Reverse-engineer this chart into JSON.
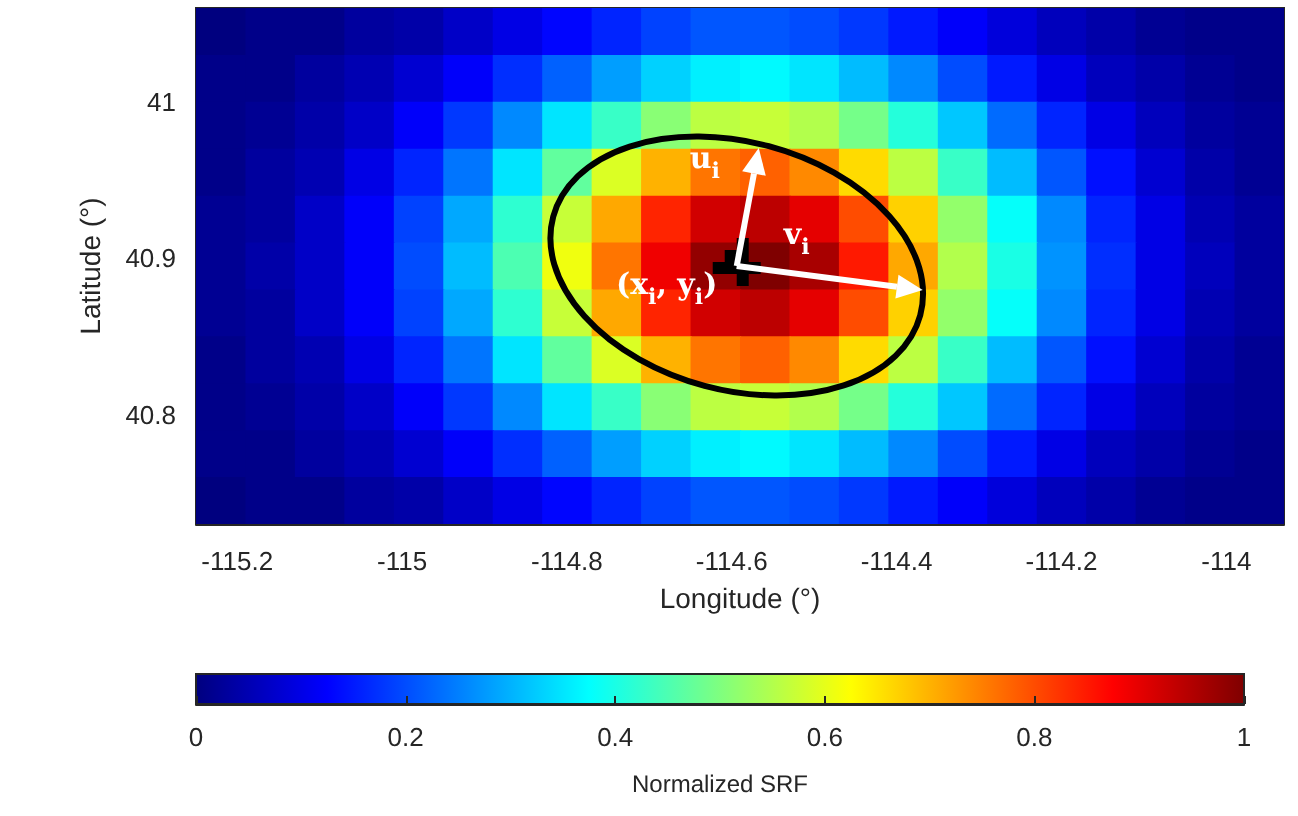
{
  "chart_data": {
    "type": "heatmap",
    "xlabel": "Longitude (°)",
    "ylabel": "Latitude (°)",
    "clabel": "Normalized SRF",
    "x": [
      -115.22,
      -115.16,
      -115.1,
      -115.04,
      -114.98,
      -114.92,
      -114.86,
      -114.8,
      -114.74,
      -114.68,
      -114.62,
      -114.56,
      -114.5,
      -114.44,
      -114.38,
      -114.32,
      -114.26,
      -114.2,
      -114.14,
      -114.08,
      -114.02,
      -113.96
    ],
    "y": [
      41.045,
      41.015,
      40.985,
      40.955,
      40.925,
      40.895,
      40.865,
      40.835,
      40.805,
      40.775,
      40.745
    ],
    "cells": [
      [
        0,
        0.01,
        0.01,
        0.03,
        0.04,
        0.07,
        0.1,
        0.13,
        0.16,
        0.19,
        0.21,
        0.21,
        0.2,
        0.18,
        0.15,
        0.12,
        0.09,
        0.06,
        0.04,
        0.02,
        0.01,
        0.01
      ],
      [
        0.01,
        0.01,
        0.03,
        0.05,
        0.08,
        0.12,
        0.17,
        0.22,
        0.28,
        0.33,
        0.36,
        0.37,
        0.35,
        0.31,
        0.26,
        0.2,
        0.15,
        0.1,
        0.06,
        0.04,
        0.02,
        0.01
      ],
      [
        0.01,
        0.02,
        0.04,
        0.07,
        0.12,
        0.18,
        0.26,
        0.35,
        0.43,
        0.51,
        0.56,
        0.57,
        0.55,
        0.49,
        0.41,
        0.32,
        0.23,
        0.16,
        0.1,
        0.06,
        0.03,
        0.02
      ],
      [
        0.01,
        0.03,
        0.05,
        0.1,
        0.16,
        0.24,
        0.35,
        0.47,
        0.59,
        0.7,
        0.76,
        0.78,
        0.74,
        0.66,
        0.56,
        0.43,
        0.31,
        0.21,
        0.14,
        0.08,
        0.04,
        0.02
      ],
      [
        0.02,
        0.03,
        0.07,
        0.12,
        0.19,
        0.29,
        0.42,
        0.57,
        0.71,
        0.84,
        0.92,
        0.94,
        0.9,
        0.8,
        0.67,
        0.52,
        0.38,
        0.26,
        0.16,
        0.1,
        0.05,
        0.03
      ],
      [
        0.02,
        0.04,
        0.07,
        0.12,
        0.2,
        0.31,
        0.45,
        0.61,
        0.76,
        0.89,
        0.98,
        1,
        0.96,
        0.85,
        0.71,
        0.55,
        0.4,
        0.27,
        0.17,
        0.1,
        0.06,
        0.03
      ],
      [
        0.02,
        0.03,
        0.07,
        0.12,
        0.19,
        0.29,
        0.42,
        0.57,
        0.71,
        0.84,
        0.92,
        0.94,
        0.9,
        0.8,
        0.67,
        0.52,
        0.38,
        0.26,
        0.16,
        0.1,
        0.05,
        0.03
      ],
      [
        0.01,
        0.03,
        0.05,
        0.1,
        0.16,
        0.24,
        0.35,
        0.47,
        0.59,
        0.7,
        0.76,
        0.78,
        0.74,
        0.66,
        0.56,
        0.43,
        0.31,
        0.21,
        0.14,
        0.08,
        0.04,
        0.02
      ],
      [
        0.01,
        0.02,
        0.04,
        0.07,
        0.12,
        0.18,
        0.26,
        0.35,
        0.43,
        0.51,
        0.56,
        0.57,
        0.55,
        0.49,
        0.41,
        0.32,
        0.23,
        0.16,
        0.1,
        0.06,
        0.03,
        0.02
      ],
      [
        0.01,
        0.01,
        0.03,
        0.05,
        0.08,
        0.12,
        0.17,
        0.22,
        0.28,
        0.33,
        0.36,
        0.37,
        0.35,
        0.31,
        0.26,
        0.2,
        0.15,
        0.1,
        0.06,
        0.04,
        0.02,
        0.01
      ],
      [
        0,
        0.01,
        0.01,
        0.03,
        0.04,
        0.07,
        0.1,
        0.13,
        0.16,
        0.19,
        0.21,
        0.21,
        0.2,
        0.18,
        0.15,
        0.12,
        0.09,
        0.06,
        0.04,
        0.02,
        0.01,
        0.01
      ]
    ],
    "xlim": [
      -115.25,
      -113.93
    ],
    "xticks": [
      -115.2,
      -115,
      -114.8,
      -114.6,
      -114.4,
      -114.2,
      -114
    ],
    "ylim": [
      40.73,
      41.06
    ],
    "yticks": [
      40.8,
      40.9,
      41
    ],
    "clim": [
      0,
      1
    ],
    "cticks": [
      0,
      0.2,
      0.4,
      0.6,
      0.8,
      1
    ],
    "annotations": [
      "u$_{i}$",
      "v$_{i}$",
      "(x$_{i}$, y$_{i}$)"
    ]
  }
}
